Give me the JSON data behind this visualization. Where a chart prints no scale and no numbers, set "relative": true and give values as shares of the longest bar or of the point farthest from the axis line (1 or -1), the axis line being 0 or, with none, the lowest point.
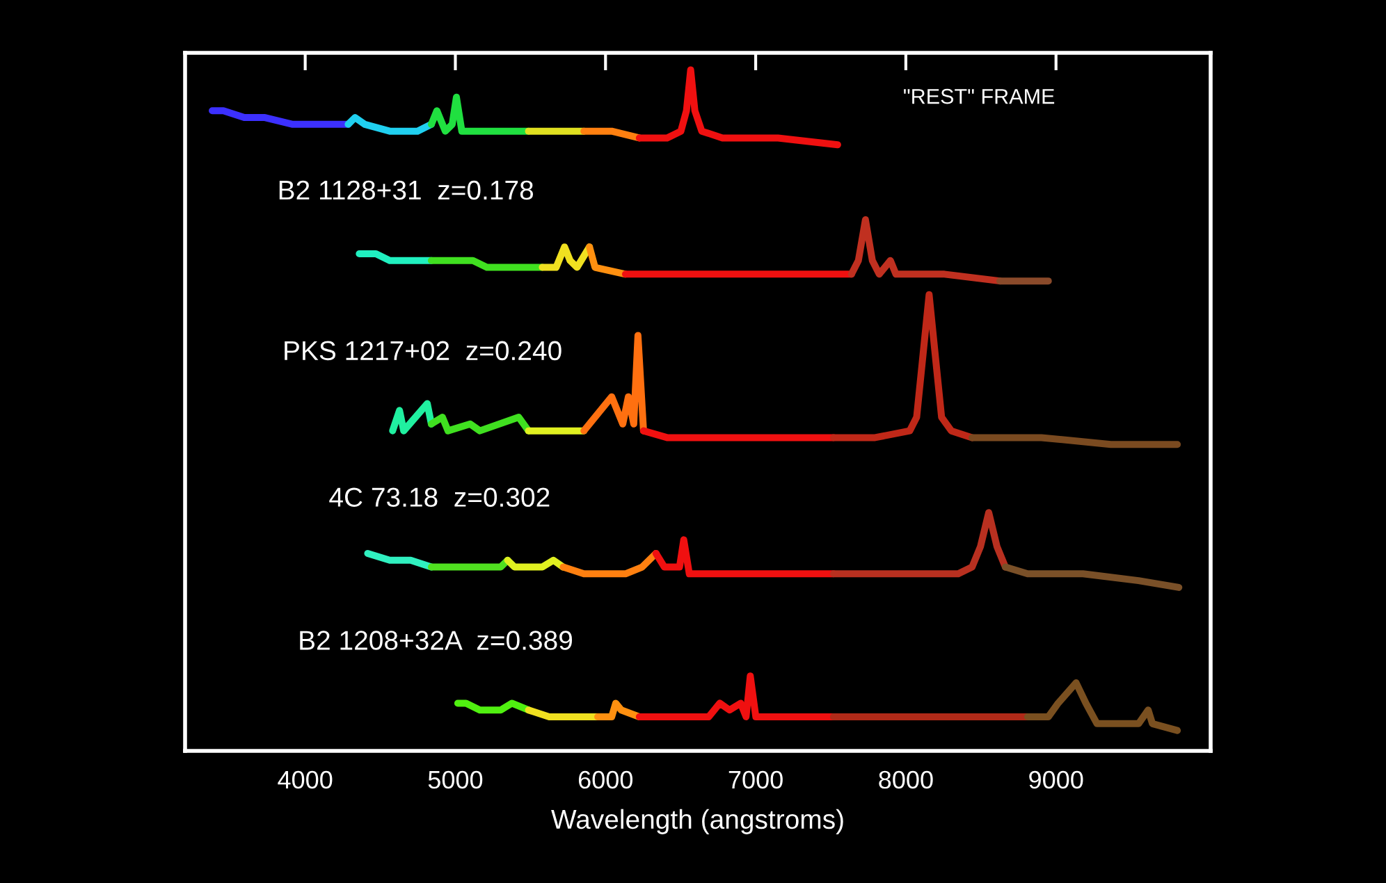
{
  "chart_data": {
    "type": "line",
    "xlabel": "Wavelength (angstroms)",
    "relative": true,
    "xlim": [
      3200,
      10030
    ],
    "xticks": [
      4000,
      5000,
      6000,
      7000,
      8000,
      9000
    ],
    "grid": false,
    "annotations": [
      "\"REST\" FRAME",
      "B2 1128+31  z=0.178",
      "PKS 1217+02  z=0.240",
      "4C 73.18  z=0.302",
      "B2 1208+32A  z=0.389"
    ],
    "series": [
      {
        "color": "#3c30ff",
        "x": [
          3381,
          3455,
          3594,
          3732,
          3917,
          4009,
          4148,
          4286
        ],
        "values": [
          0.94,
          0.94,
          0.93,
          0.93,
          0.92,
          0.92,
          0.92,
          0.92
        ]
      },
      {
        "color": "#20d0f0",
        "x": [
          4286,
          4332,
          4397,
          4563,
          4748,
          4840
        ],
        "values": [
          0.92,
          0.93,
          0.92,
          0.91,
          0.91,
          0.92
        ]
      },
      {
        "color": "#20e040",
        "x": [
          4840,
          4877,
          4933,
          4979,
          5007,
          5043,
          5163,
          5487
        ],
        "values": [
          0.92,
          0.94,
          0.91,
          0.92,
          0.96,
          0.91,
          0.91,
          0.91
        ]
      },
      {
        "color": "#e0e020",
        "x": [
          5487,
          5856
        ],
        "values": [
          0.91,
          0.91
        ]
      },
      {
        "color": "#ff8010",
        "x": [
          5856,
          5902,
          6041,
          6225
        ],
        "values": [
          0.91,
          0.91,
          0.91,
          0.9
        ]
      },
      {
        "color": "#f01010",
        "x": [
          6225,
          6410,
          6502,
          6539,
          6567,
          6595,
          6641,
          6779,
          7149,
          7546
        ],
        "values": [
          0.9,
          0.9,
          0.91,
          0.94,
          1.0,
          0.94,
          0.91,
          0.9,
          0.9,
          0.89
        ]
      },
      {
        "color": "#20f0c0",
        "x": [
          4360,
          4471,
          4563,
          4656,
          4748,
          4840
        ],
        "values": [
          0.73,
          0.73,
          0.72,
          0.72,
          0.72,
          0.72
        ]
      },
      {
        "color": "#40e020",
        "x": [
          4840,
          5117,
          5210,
          5394,
          5579
        ],
        "values": [
          0.72,
          0.72,
          0.71,
          0.71,
          0.71
        ]
      },
      {
        "color": "#f0e020",
        "x": [
          5579,
          5671,
          5727,
          5764,
          5810,
          5893
        ],
        "values": [
          0.71,
          0.71,
          0.74,
          0.72,
          0.71,
          0.74
        ]
      },
      {
        "color": "#ff9010",
        "x": [
          5893,
          5930,
          6133
        ],
        "values": [
          0.74,
          0.71,
          0.7
        ]
      },
      {
        "color": "#f01010",
        "x": [
          6133,
          6410,
          6779,
          7149,
          7518,
          7638
        ],
        "values": [
          0.7,
          0.7,
          0.7,
          0.7,
          0.7,
          0.7
        ]
      },
      {
        "color": "#c03020",
        "x": [
          7638,
          7684,
          7731,
          7777,
          7823,
          7897,
          7934,
          8257,
          8626
        ],
        "values": [
          0.7,
          0.72,
          0.78,
          0.72,
          0.7,
          0.72,
          0.7,
          0.7,
          0.69
        ]
      },
      {
        "color": "#8a4a2a",
        "x": [
          8626,
          8949
        ],
        "values": [
          0.69,
          0.69
        ]
      },
      {
        "color": "#20f0a0",
        "x": [
          4582,
          4628,
          4656,
          4813,
          4840
        ],
        "values": [
          0.47,
          0.5,
          0.47,
          0.51,
          0.48
        ]
      },
      {
        "color": "#40e020",
        "x": [
          4840,
          4914,
          4951,
          5099,
          5163,
          5422,
          5487
        ],
        "values": [
          0.48,
          0.49,
          0.47,
          0.48,
          0.47,
          0.49,
          0.47
        ]
      },
      {
        "color": "#e0f020",
        "x": [
          5487,
          5671,
          5856
        ],
        "values": [
          0.47,
          0.47,
          0.47
        ]
      },
      {
        "color": "#ff7010",
        "x": [
          5856,
          6041,
          6115,
          6152,
          6188,
          6216,
          6253
        ],
        "values": [
          0.47,
          0.52,
          0.48,
          0.52,
          0.48,
          0.61,
          0.47
        ]
      },
      {
        "color": "#f01010",
        "x": [
          6253,
          6410,
          6779,
          7149,
          7518
        ],
        "values": [
          0.47,
          0.46,
          0.46,
          0.46,
          0.46
        ]
      },
      {
        "color": "#c02818",
        "x": [
          7518,
          7703,
          7795,
          8026,
          8072,
          8109,
          8155,
          8201,
          8238,
          8303,
          8441
        ],
        "values": [
          0.46,
          0.46,
          0.46,
          0.47,
          0.49,
          0.57,
          0.67,
          0.57,
          0.49,
          0.47,
          0.46
        ]
      },
      {
        "color": "#7a4a20",
        "x": [
          8441,
          8903,
          9365,
          9808
        ],
        "values": [
          0.46,
          0.46,
          0.45,
          0.45
        ]
      },
      {
        "color": "#30f0c0",
        "x": [
          4416,
          4563,
          4702,
          4840
        ],
        "values": [
          0.29,
          0.28,
          0.28,
          0.27
        ]
      },
      {
        "color": "#50e020",
        "x": [
          4840,
          5025,
          5163,
          5302,
          5348
        ],
        "values": [
          0.27,
          0.27,
          0.27,
          0.27,
          0.28
        ]
      },
      {
        "color": "#e0f020",
        "x": [
          5348,
          5394,
          5579,
          5653,
          5718
        ],
        "values": [
          0.28,
          0.27,
          0.27,
          0.28,
          0.27
        ]
      },
      {
        "color": "#ff8010",
        "x": [
          5718,
          5856,
          6133,
          6244,
          6336
        ],
        "values": [
          0.27,
          0.26,
          0.26,
          0.27,
          0.29
        ]
      },
      {
        "color": "#f01010",
        "x": [
          6336,
          6392,
          6456,
          6493,
          6521,
          6558,
          6779,
          7149,
          7518
        ],
        "values": [
          0.29,
          0.27,
          0.27,
          0.27,
          0.31,
          0.26,
          0.26,
          0.26,
          0.26
        ]
      },
      {
        "color": "#b83020",
        "x": [
          7518,
          7980,
          8349,
          8441,
          8497,
          8552,
          8607,
          8663
        ],
        "values": [
          0.26,
          0.26,
          0.26,
          0.27,
          0.3,
          0.35,
          0.3,
          0.27
        ]
      },
      {
        "color": "#7a5028",
        "x": [
          8663,
          8811,
          9180,
          9550,
          9818
        ],
        "values": [
          0.27,
          0.26,
          0.26,
          0.25,
          0.24
        ]
      },
      {
        "color": "#50f010",
        "x": [
          5016,
          5071,
          5163,
          5302,
          5376,
          5487
        ],
        "values": [
          0.07,
          0.07,
          0.06,
          0.06,
          0.07,
          0.06
        ]
      },
      {
        "color": "#f0e020",
        "x": [
          5487,
          5625,
          5764,
          5856,
          5948
        ],
        "values": [
          0.06,
          0.05,
          0.05,
          0.05,
          0.05
        ]
      },
      {
        "color": "#ff9010",
        "x": [
          5948,
          6041,
          6068,
          6105,
          6225
        ],
        "values": [
          0.05,
          0.05,
          0.07,
          0.06,
          0.05
        ]
      },
      {
        "color": "#f01010",
        "x": [
          6225,
          6410,
          6595,
          6687,
          6761,
          6826,
          6900,
          6936,
          6964,
          7001,
          7241,
          7518
        ],
        "values": [
          0.05,
          0.05,
          0.05,
          0.05,
          0.07,
          0.06,
          0.07,
          0.05,
          0.11,
          0.05,
          0.05,
          0.05
        ]
      },
      {
        "color": "#b02a18",
        "x": [
          7518,
          7980,
          8442,
          8811
        ],
        "values": [
          0.05,
          0.05,
          0.05,
          0.05
        ]
      },
      {
        "color": "#7a5020",
        "x": [
          8811,
          8949,
          9014,
          9134,
          9199,
          9273,
          9365,
          9550,
          9614,
          9642,
          9808
        ],
        "values": [
          0.05,
          0.05,
          0.07,
          0.1,
          0.07,
          0.04,
          0.04,
          0.04,
          0.06,
          0.04,
          0.03
        ]
      }
    ]
  }
}
